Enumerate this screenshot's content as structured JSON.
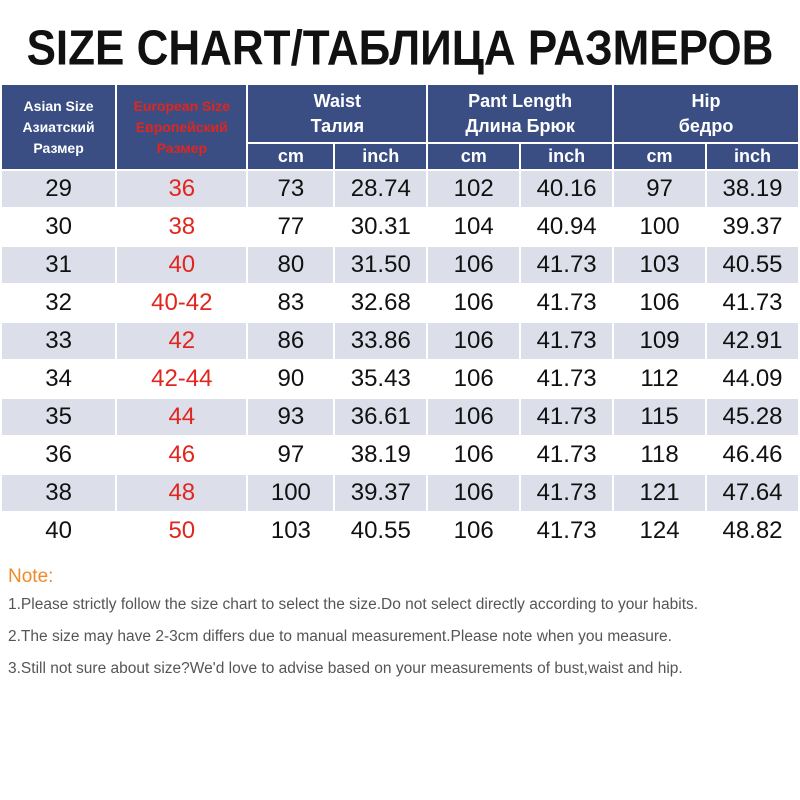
{
  "title": "SIZE CHART/ТАБЛИЦА РАЗМЕРОВ",
  "headers": {
    "asian": [
      "Asian Size",
      "Азиатский",
      "Размер"
    ],
    "european": [
      "European Size",
      "Европейский",
      "Размер"
    ],
    "waist": [
      "Waist",
      "Талия"
    ],
    "pant_length": [
      "Pant Length",
      "Длина Брюк"
    ],
    "hip": [
      "Hip",
      "бедро"
    ],
    "units": [
      "cm",
      "inch",
      "cm",
      "inch",
      "cm",
      "inch"
    ]
  },
  "rows": [
    [
      "29",
      "36",
      "73",
      "28.74",
      "102",
      "40.16",
      "97",
      "38.19"
    ],
    [
      "30",
      "38",
      "77",
      "30.31",
      "104",
      "40.94",
      "100",
      "39.37"
    ],
    [
      "31",
      "40",
      "80",
      "31.50",
      "106",
      "41.73",
      "103",
      "40.55"
    ],
    [
      "32",
      "40-42",
      "83",
      "32.68",
      "106",
      "41.73",
      "106",
      "41.73"
    ],
    [
      "33",
      "42",
      "86",
      "33.86",
      "106",
      "41.73",
      "109",
      "42.91"
    ],
    [
      "34",
      "42-44",
      "90",
      "35.43",
      "106",
      "41.73",
      "112",
      "44.09"
    ],
    [
      "35",
      "44",
      "93",
      "36.61",
      "106",
      "41.73",
      "115",
      "45.28"
    ],
    [
      "36",
      "46",
      "97",
      "38.19",
      "106",
      "41.73",
      "118",
      "46.46"
    ],
    [
      "38",
      "48",
      "100",
      "39.37",
      "106",
      "41.73",
      "121",
      "47.64"
    ],
    [
      "40",
      "50",
      "103",
      "40.55",
      "106",
      "41.73",
      "124",
      "48.82"
    ]
  ],
  "notes": {
    "heading": "Note:",
    "lines": [
      "1.Please strictly follow the size chart to select the size.Do not select directly according to your habits.",
      "2.The size may have 2-3cm differs due to manual measurement.Please note when you measure.",
      "3.Still not sure about size?We'd love to advise based on your measurements of bust,waist and hip."
    ]
  },
  "colors": {
    "header_bg": "#3a4e83",
    "alt_row_bg": "#dcdfea",
    "european_text": "#e0261e",
    "note_heading": "#f08a28"
  }
}
